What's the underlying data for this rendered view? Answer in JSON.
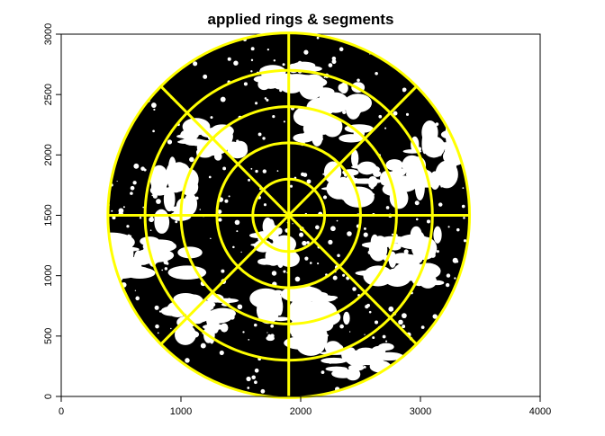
{
  "chart_data": {
    "type": "image-plot",
    "title": "applied rings & segments",
    "xlim": [
      0,
      4000
    ],
    "ylim": [
      0,
      3000
    ],
    "x_ticks": [
      0,
      1000,
      2000,
      3000,
      4000
    ],
    "y_ticks": [
      0,
      500,
      1000,
      1500,
      2000,
      2500,
      3000
    ],
    "x_tick_labels": [
      "0",
      "1000",
      "2000",
      "3000",
      "4000"
    ],
    "y_tick_labels": [
      "0",
      "500",
      "1000",
      "1500",
      "2000",
      "2500",
      "3000"
    ],
    "image_extent": {
      "x": [
        0,
        4000
      ],
      "y": [
        0,
        3000
      ]
    },
    "fisheye": {
      "center": [
        1900,
        1500
      ],
      "radius": 1510,
      "fill_color": "#000000",
      "sky_color": "#ffffff"
    },
    "overlay": {
      "color": "#ffff00",
      "ring_radii": [
        300,
        600,
        900,
        1200,
        1510
      ],
      "segment_count": 8,
      "segment_angles_deg": [
        0,
        45,
        90,
        135,
        180,
        225,
        270,
        315
      ]
    }
  }
}
